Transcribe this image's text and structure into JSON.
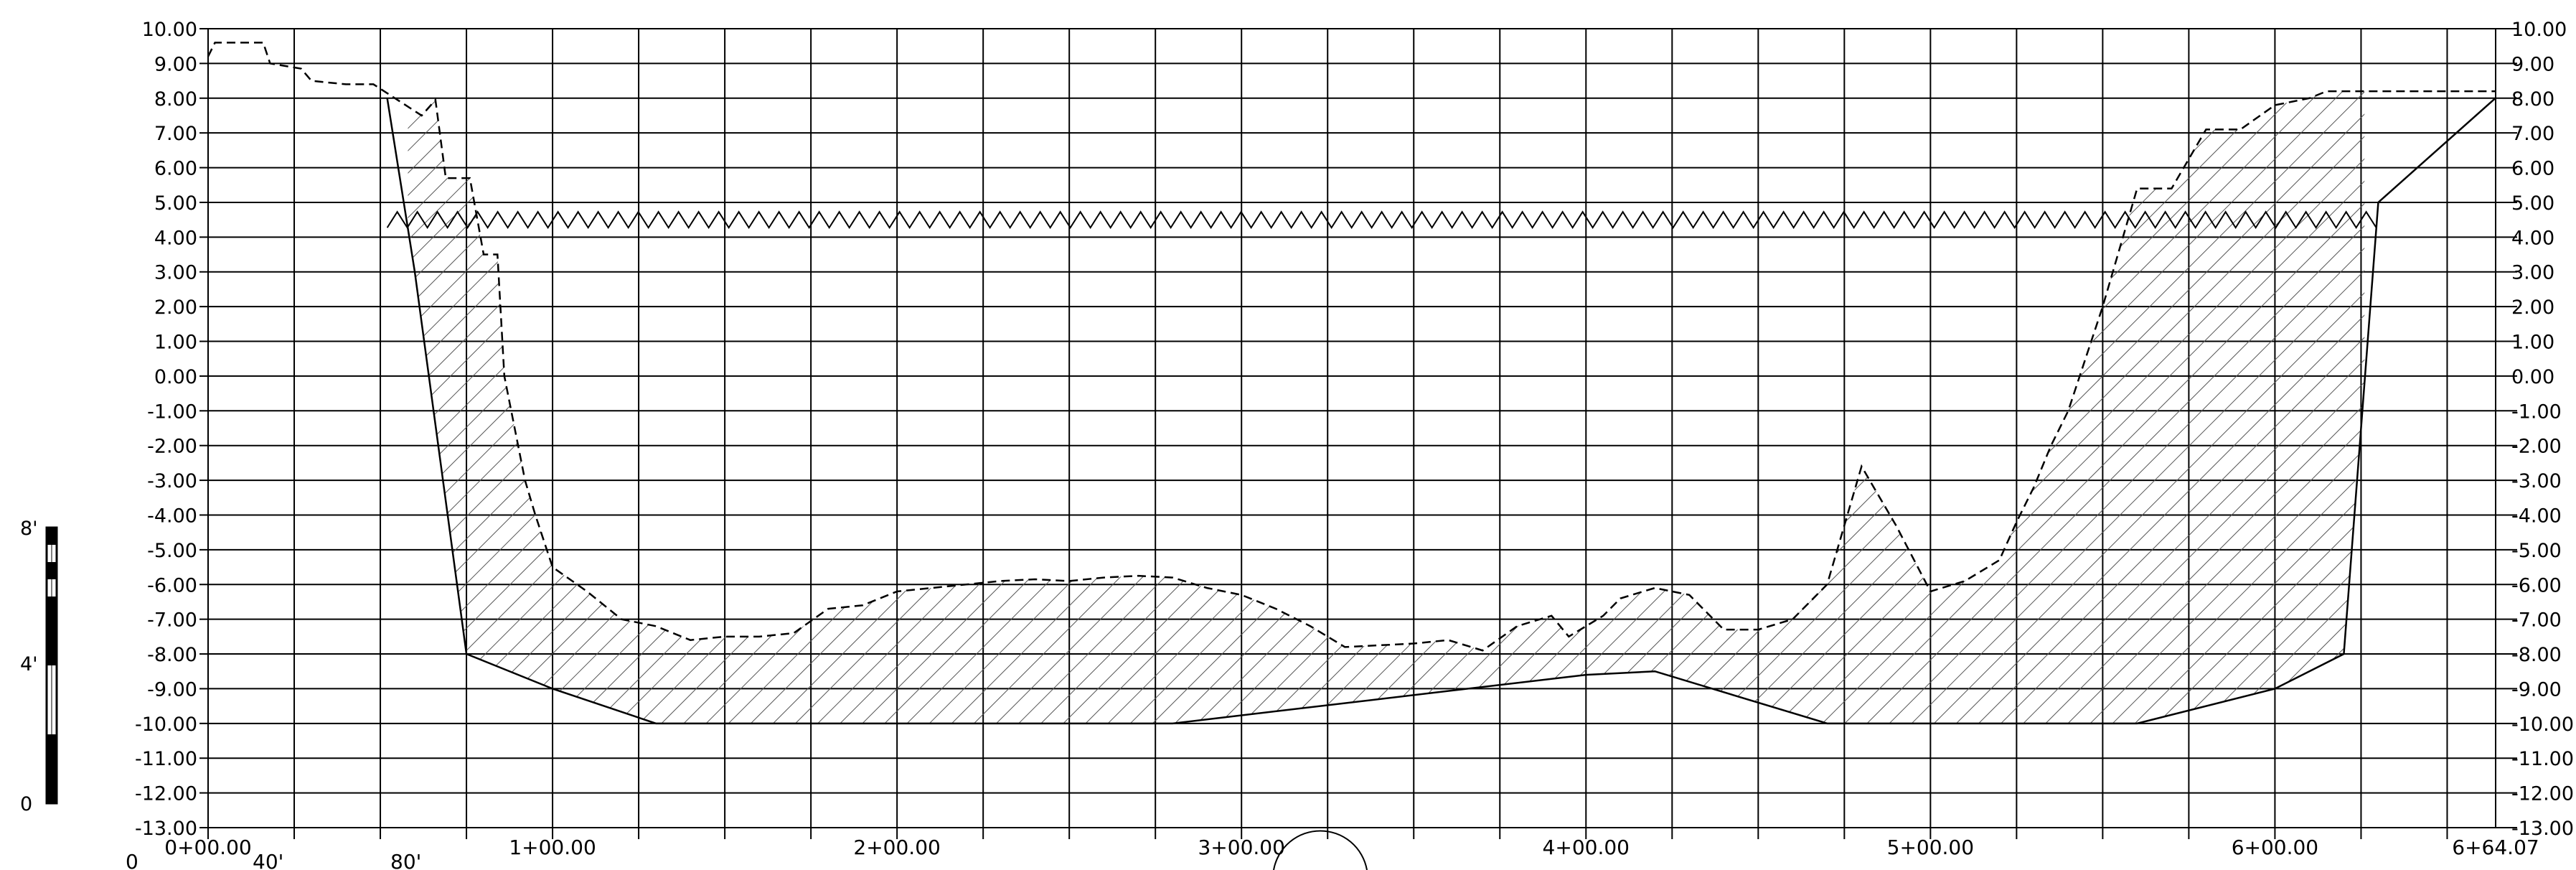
{
  "chart_data": {
    "type": "profile",
    "elevations": [
      "10.00",
      "9.00",
      "8.00",
      "7.00",
      "6.00",
      "5.00",
      "4.00",
      "3.00",
      "2.00",
      "1.00",
      "0.00",
      "-1.00",
      "-2.00",
      "-3.00",
      "-4.00",
      "-5.00",
      "-6.00",
      "-7.00",
      "-8.00",
      "-9.00",
      "-10.00",
      "-11.00",
      "-12.00",
      "-13.00"
    ],
    "elevation_labels_right": [
      "10.00",
      "9.00",
      "8.00",
      "7.00",
      "6.00",
      "5.00",
      "4.00",
      "3.00",
      "2.00",
      "1.00",
      "0.00",
      "-1.00",
      "-2.00",
      "-3.00",
      "-4.00",
      "-5.00",
      "-6.00",
      "-7.00",
      "-8.00",
      "-9.00",
      "-10.00",
      "-11.00",
      "-12.00",
      "-13.00"
    ],
    "ylim": [
      -13,
      10
    ],
    "xlim": [
      0,
      664.07
    ],
    "grid_spacing_x": 25,
    "station_labels": [
      {
        "station": 0,
        "label": "0+00.00"
      },
      {
        "station": 100,
        "label": "1+00.00"
      },
      {
        "station": 200,
        "label": "2+00.00"
      },
      {
        "station": 300,
        "label": "3+00.00"
      },
      {
        "station": 400,
        "label": "4+00.00"
      },
      {
        "station": 500,
        "label": "5+00.00"
      },
      {
        "station": 600,
        "label": "6+00.00"
      },
      {
        "station": 664.07,
        "label": "6+64.07"
      }
    ],
    "series": [
      {
        "style": "dashed",
        "x": [
          0,
          2,
          5,
          16,
          18,
          27,
          30,
          40,
          48,
          62,
          66,
          69,
          70,
          72,
          73,
          74,
          76,
          80,
          84,
          86,
          88,
          90,
          92,
          95,
          100,
          110,
          120,
          130,
          140,
          150,
          160,
          170,
          180,
          190,
          200,
          210,
          220,
          230,
          240,
          250,
          260,
          270,
          280,
          290,
          300,
          310,
          320,
          330,
          340,
          350,
          360,
          370,
          380,
          390,
          395,
          400,
          405,
          410,
          420,
          430,
          440,
          450,
          460,
          470,
          480,
          490,
          500,
          510,
          520,
          525,
          530,
          535,
          540,
          550,
          560,
          570,
          580,
          590,
          600,
          605,
          610,
          615,
          620,
          625,
          630,
          640,
          650,
          664
        ],
        "y": [
          9.2,
          9.6,
          9.6,
          9.6,
          9.0,
          8.85,
          8.5,
          8.4,
          8.4,
          7.5,
          7.95,
          5.7,
          5.7,
          5.7,
          5.7,
          5.7,
          5.7,
          3.5,
          3.5,
          0.0,
          -1.0,
          -2.0,
          -3.0,
          -4.0,
          -5.5,
          -6.2,
          -7.0,
          -7.2,
          -7.6,
          -7.5,
          -7.5,
          -7.4,
          -6.7,
          -6.6,
          -6.2,
          -6.1,
          -6.0,
          -5.9,
          -5.85,
          -5.9,
          -5.8,
          -5.75,
          -5.8,
          -6.1,
          -6.3,
          -6.7,
          -7.2,
          -7.8,
          -7.75,
          -7.7,
          -7.6,
          -7.9,
          -7.2,
          -6.9,
          -7.5,
          -7.2,
          -6.9,
          -6.4,
          -6.1,
          -6.3,
          -7.3,
          -7.3,
          -7.0,
          -6.0,
          -2.6,
          -4.3,
          -6.2,
          -5.9,
          -5.3,
          -4.2,
          -3.2,
          -2.0,
          -1.0,
          2.0,
          5.4,
          5.4,
          7.1,
          7.1,
          7.8,
          7.9,
          8.0,
          8.2,
          8.2,
          8.2,
          8.2,
          8.2,
          8.2,
          8.2
        ]
      },
      {
        "style": "solid",
        "x": [
          52,
          60,
          75,
          100,
          130,
          180,
          280,
          400,
          420,
          470,
          550,
          560,
          600,
          620,
          630,
          664
        ],
        "y": [
          8.0,
          3.0,
          -8.0,
          -9.0,
          -10.0,
          -10.0,
          -10.0,
          -8.6,
          -8.5,
          -10.0,
          -10.0,
          -10.0,
          -9.0,
          -8.0,
          5.0,
          8.0
        ]
      }
    ],
    "water_line_elevation": 4.5,
    "scale_bar": {
      "labels": [
        "8'",
        "4'",
        "0"
      ]
    },
    "station_distance_labels": [
      "0",
      "40'",
      "80'"
    ]
  }
}
